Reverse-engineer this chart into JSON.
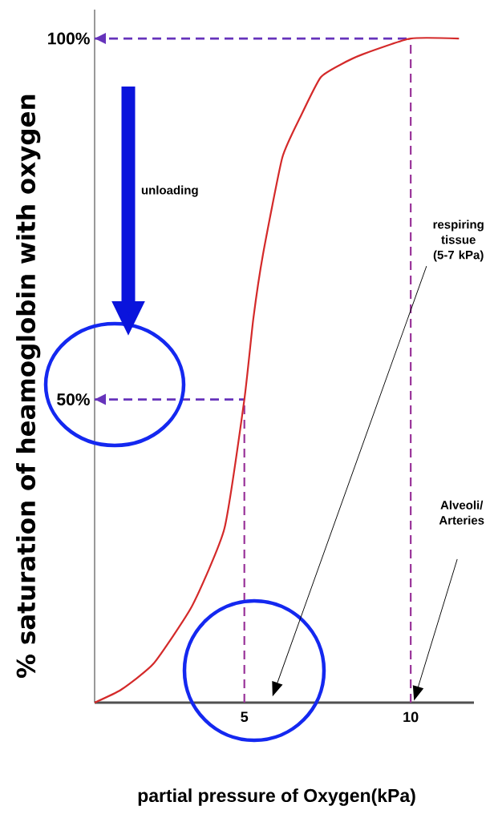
{
  "chart_data": {
    "type": "line",
    "xlabel": "partial pressure of Oxygen(kPa)",
    "ylabel": "% saturation of heamoglobin with oxygen",
    "series": [
      {
        "color": "#d42a2a",
        "x": [
          0.5,
          1.3,
          2.27,
          3.43,
          4.4,
          5,
          5.27,
          5.56,
          6.14,
          6.7,
          7.29,
          7.9,
          8.55,
          10,
          11.45
        ],
        "values": [
          8,
          9.8,
          13.4,
          21.4,
          32.1,
          50,
          61.2,
          70.1,
          83.5,
          89.3,
          94.6,
          96.4,
          97.8,
          100,
          100
        ]
      }
    ],
    "xlim": [
      0.5,
      11.9
    ],
    "ylim": [
      8,
      104
    ],
    "xticks": [
      5,
      10
    ],
    "yticks": [
      {
        "value": 50,
        "label": "50%"
      },
      {
        "value": 100,
        "label": "100%"
      }
    ],
    "ref_lines": [
      {
        "axis": "x",
        "value": 5,
        "color": "#993399",
        "line_style": "dashed"
      },
      {
        "axis": "x",
        "value": 10,
        "color": "#993399",
        "line_style": "dashed"
      },
      {
        "axis": "y",
        "value": 50,
        "color": "#6633bb",
        "line_style": "dashed"
      },
      {
        "axis": "y",
        "value": 100,
        "color": "#6633bb",
        "line_style": "dashed"
      }
    ],
    "annotations": [
      "unloading",
      "respiring tissue (5-7 kPa)",
      "Alveoli/ Arteries"
    ],
    "line_style": "solid"
  }
}
